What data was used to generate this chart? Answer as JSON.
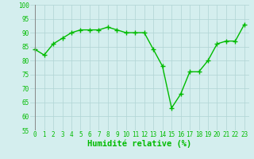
{
  "x": [
    0,
    1,
    2,
    3,
    4,
    5,
    6,
    7,
    8,
    9,
    10,
    11,
    12,
    13,
    14,
    15,
    16,
    17,
    18,
    19,
    20,
    21,
    22,
    23
  ],
  "y": [
    84,
    82,
    86,
    88,
    90,
    91,
    91,
    91,
    92,
    91,
    90,
    90,
    90,
    84,
    78,
    63,
    68,
    76,
    76,
    80,
    86,
    87,
    87,
    93
  ],
  "line_color": "#00bb00",
  "marker": "+",
  "marker_size": 4,
  "marker_linewidth": 1.0,
  "bg_color": "#d4eeee",
  "grid_color": "#b0d4d4",
  "xlabel": "Humidité relative (%)",
  "xlabel_color": "#00bb00",
  "xlabel_fontsize": 7.5,
  "tick_color": "#00bb00",
  "tick_fontsize": 5.5,
  "linewidth": 1.0,
  "ylim": [
    55,
    100
  ],
  "yticks": [
    55,
    60,
    65,
    70,
    75,
    80,
    85,
    90,
    95,
    100
  ],
  "xlim": [
    -0.5,
    23.5
  ]
}
